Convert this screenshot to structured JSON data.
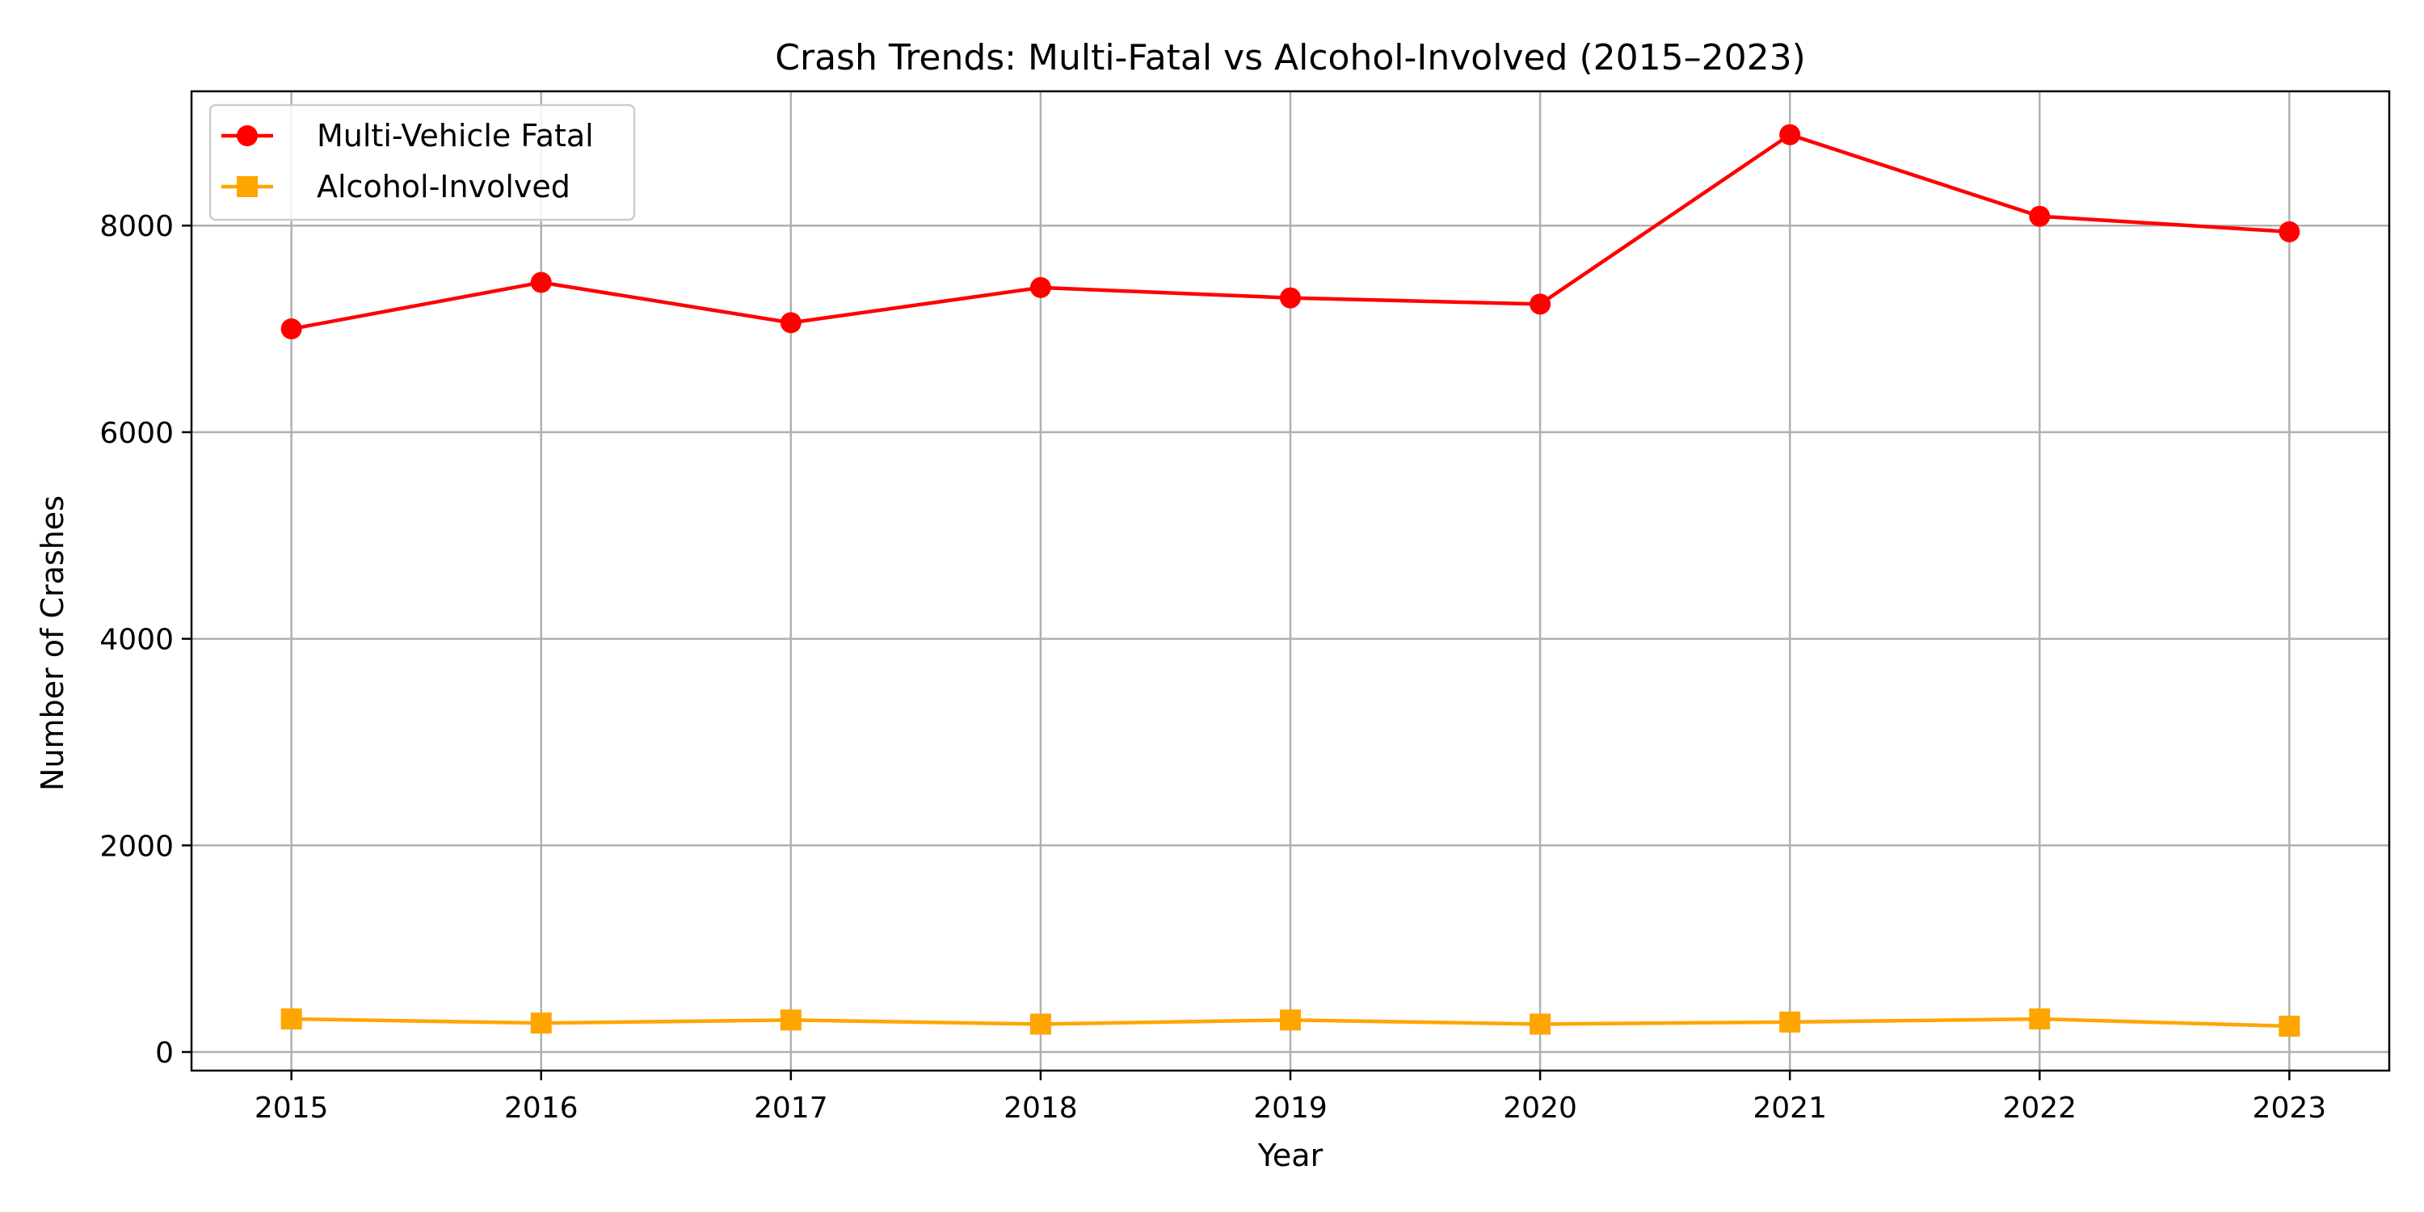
{
  "chart_data": {
    "type": "line",
    "title": "Crash Trends: Multi-Fatal vs Alcohol-Involved (2015–2023)",
    "xlabel": "Year",
    "ylabel": "Number of Crashes",
    "x": [
      2015,
      2016,
      2017,
      2018,
      2019,
      2020,
      2021,
      2022,
      2023
    ],
    "x_tick_labels": [
      "2015",
      "2016",
      "2017",
      "2018",
      "2019",
      "2020",
      "2021",
      "2022",
      "2023"
    ],
    "y_ticks": [
      0,
      2000,
      4000,
      6000,
      8000
    ],
    "y_tick_labels": [
      "0",
      "2000",
      "4000",
      "6000",
      "8000"
    ],
    "xlim": [
      2014.6,
      2023.4
    ],
    "ylim": [
      -180,
      9300
    ],
    "grid": true,
    "legend_position": "top-left",
    "series": [
      {
        "name": "Multi-Vehicle Fatal",
        "color": "#ff0000",
        "marker": "circle",
        "values": [
          7000,
          7450,
          7060,
          7400,
          7300,
          7240,
          8880,
          8090,
          7940
        ]
      },
      {
        "name": "Alcohol-Involved",
        "color": "#ffa500",
        "marker": "square",
        "values": [
          320,
          280,
          310,
          270,
          310,
          270,
          290,
          320,
          250
        ]
      }
    ]
  }
}
